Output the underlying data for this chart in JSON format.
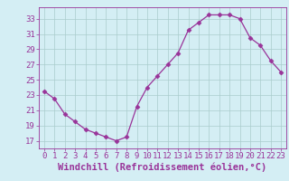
{
  "x": [
    0,
    1,
    2,
    3,
    4,
    5,
    6,
    7,
    8,
    9,
    10,
    11,
    12,
    13,
    14,
    15,
    16,
    17,
    18,
    19,
    20,
    21,
    22,
    23
  ],
  "y": [
    23.5,
    22.5,
    20.5,
    19.5,
    18.5,
    18.0,
    17.5,
    17.0,
    17.5,
    21.5,
    24.0,
    25.5,
    27.0,
    28.5,
    31.5,
    32.5,
    33.5,
    33.5,
    33.5,
    33.0,
    30.5,
    29.5,
    27.5,
    26.0
  ],
  "line_color": "#993399",
  "marker": "D",
  "marker_size": 2.5,
  "bg_color": "#d4eef4",
  "grid_color": "#aacccc",
  "xlabel": "Windchill (Refroidissement éolien,°C)",
  "xlabel_color": "#993399",
  "yticks": [
    17,
    19,
    21,
    23,
    25,
    27,
    29,
    31,
    33
  ],
  "xticks": [
    0,
    1,
    2,
    3,
    4,
    5,
    6,
    7,
    8,
    9,
    10,
    11,
    12,
    13,
    14,
    15,
    16,
    17,
    18,
    19,
    20,
    21,
    22,
    23
  ],
  "ylim": [
    16.0,
    34.5
  ],
  "xlim": [
    -0.5,
    23.5
  ],
  "tick_color": "#993399",
  "tick_fontsize": 6.5,
  "xlabel_fontsize": 7.5
}
